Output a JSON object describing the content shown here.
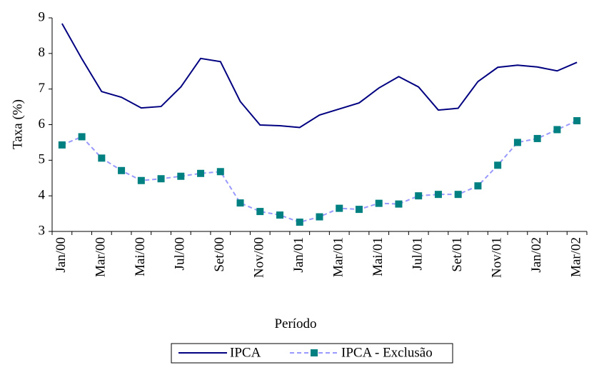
{
  "chart_data": {
    "type": "line",
    "x_label": "Período",
    "y_label": "Taxa (%)",
    "categories": [
      "Jan/00",
      null,
      "Mar/00",
      null,
      "Mai/00",
      null,
      "Jul/00",
      null,
      "Set/00",
      null,
      "Nov/00",
      null,
      "Jan/01",
      null,
      "Mar/01",
      null,
      "Mai/01",
      null,
      "Jul/01",
      null,
      "Set/01",
      null,
      "Nov/01",
      null,
      "Jan/02",
      null,
      "Mar/02"
    ],
    "series": [
      {
        "name": "IPCA",
        "color": "#000080",
        "values": [
          8.84,
          7.85,
          6.93,
          6.77,
          6.47,
          6.51,
          7.06,
          7.86,
          7.77,
          6.65,
          5.99,
          5.97,
          5.92,
          6.27,
          6.44,
          6.61,
          7.03,
          7.35,
          7.06,
          6.41,
          6.46,
          7.21,
          7.61,
          7.67,
          7.62,
          7.51,
          7.75
        ]
      },
      {
        "name": "IPCA - Exclusão",
        "color": "#008080",
        "line_color": "#9999ff",
        "values": [
          5.43,
          5.66,
          5.06,
          4.71,
          4.43,
          4.48,
          4.55,
          4.63,
          4.68,
          3.8,
          3.56,
          3.46,
          3.26,
          3.41,
          3.65,
          3.62,
          3.79,
          3.77,
          4.0,
          4.04,
          4.04,
          4.28,
          4.86,
          5.5,
          5.61,
          5.86,
          6.11
        ]
      }
    ],
    "ylim": [
      3,
      9
    ],
    "yticks": [
      3,
      4,
      5,
      6,
      7,
      8,
      9
    ],
    "legend": "bottom"
  }
}
